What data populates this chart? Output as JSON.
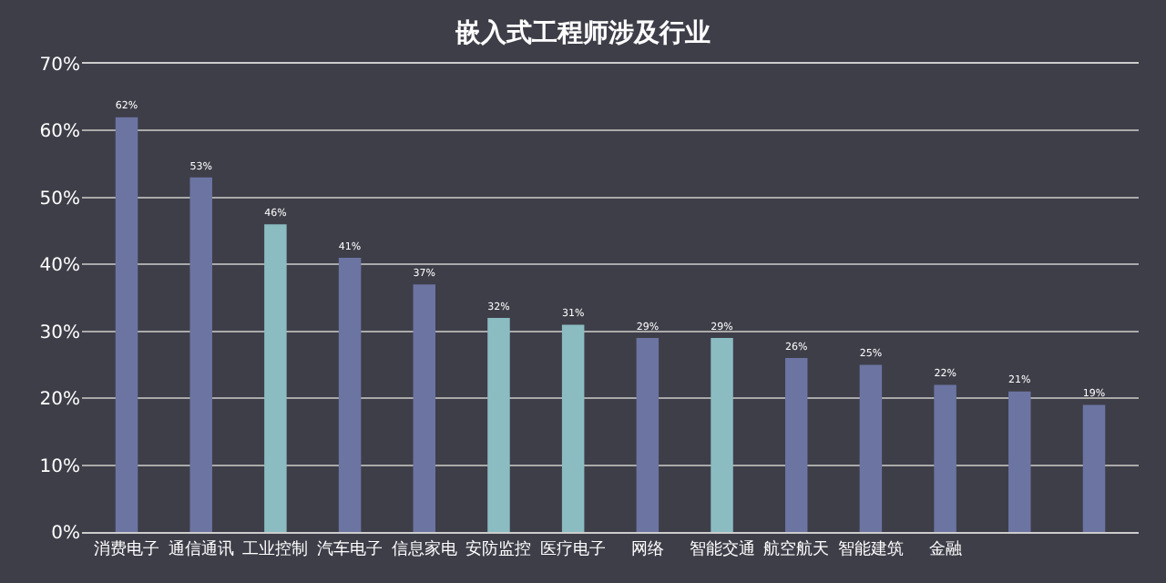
{
  "chart_data": {
    "type": "bar",
    "title": "嵌入式工程师涉及行业",
    "categories": [
      "消费电子",
      "通信通讯",
      "工业控制",
      "汽车电子",
      "信息家电",
      "安防监控",
      "医疗电子",
      "网络",
      "智能交通",
      "航空航天",
      "智能建筑",
      "金融",
      null,
      null
    ],
    "values": [
      62,
      53,
      46,
      41,
      37,
      32,
      31,
      29,
      29,
      26,
      25,
      22,
      21,
      19
    ],
    "colors": [
      "#6c74a2",
      "#6c74a2",
      "#8bbcc2",
      "#6c74a2",
      "#6c74a2",
      "#8bbcc2",
      "#8bbcc2",
      "#6c74a2",
      "#8bbcc2",
      "#6c74a2",
      "#6c74a2",
      "#6c74a2",
      "#6c74a2",
      "#6c74a2"
    ],
    "value_labels": [
      "62%",
      "53%",
      "46%",
      "41%",
      "37%",
      "32%",
      "31%",
      "29%",
      "29%",
      "26%",
      "25%",
      "22%",
      "21%",
      "19%"
    ],
    "ylim": [
      0,
      70
    ],
    "yticks": [
      {
        "value": 0,
        "label": "0%"
      },
      {
        "value": 10,
        "label": "10%"
      },
      {
        "value": 20,
        "label": "20%"
      },
      {
        "value": 30,
        "label": "30%"
      },
      {
        "value": 40,
        "label": "40%"
      },
      {
        "value": 50,
        "label": "50%"
      },
      {
        "value": 60,
        "label": "60%"
      },
      {
        "value": 70,
        "label": "70%"
      }
    ],
    "grid": "y"
  }
}
